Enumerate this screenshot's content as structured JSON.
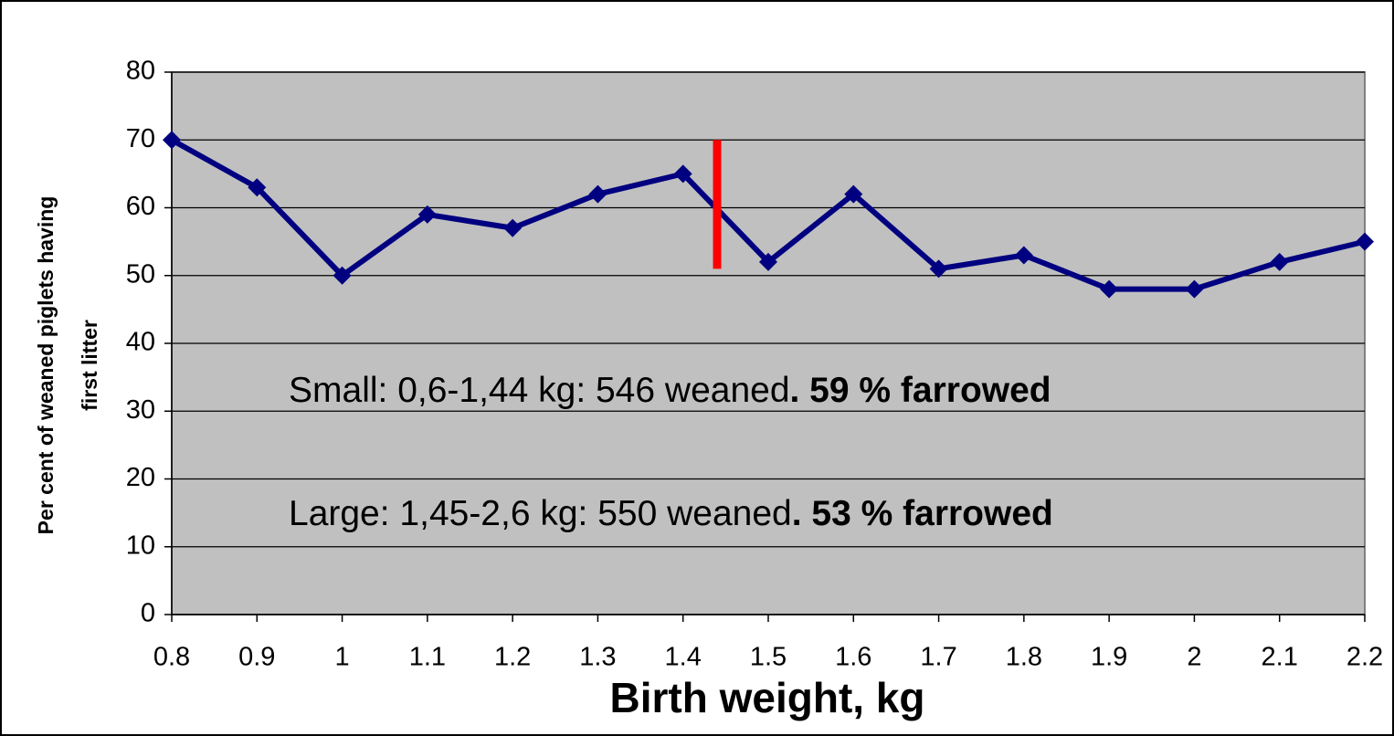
{
  "chart_data": {
    "type": "line",
    "xlabel": "Birth weight, kg",
    "ylabel": [
      "Per cent of weaned piglets having",
      "first litter"
    ],
    "x": [
      0.8,
      0.9,
      1,
      1.1,
      1.2,
      1.3,
      1.4,
      1.5,
      1.6,
      1.7,
      1.8,
      1.9,
      2,
      2.1,
      2.2
    ],
    "series": [
      {
        "color": "#000080",
        "values": [
          70,
          63,
          50,
          59,
          57,
          62,
          65,
          52,
          62,
          51,
          53,
          48,
          48,
          52,
          55
        ]
      }
    ],
    "xlim": [
      0.8,
      2.2
    ],
    "xticks": [
      0.8,
      0.9,
      1,
      1.1,
      1.2,
      1.3,
      1.4,
      1.5,
      1.6,
      1.7,
      1.8,
      1.9,
      2,
      2.1,
      2.2
    ],
    "ylim": [
      0,
      80
    ],
    "yticks": [
      0,
      10,
      20,
      30,
      40,
      50,
      60,
      70,
      80
    ],
    "grid": true,
    "divider": {
      "x": 1.44,
      "y": [
        51,
        70
      ],
      "color": "#ff0000"
    },
    "annotations": [
      {
        "text": "Small: 0,6-1,44 kg: 546 weaned",
        "bold": ". 59 % farrowed"
      },
      {
        "text": "Large: 1,45-2,6 kg: 550 weaned",
        "bold": ". 53 % farrowed"
      }
    ]
  }
}
